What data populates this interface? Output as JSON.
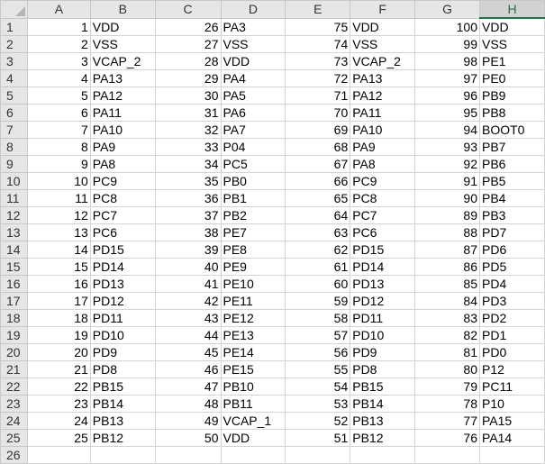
{
  "columns": [
    "A",
    "B",
    "C",
    "D",
    "E",
    "F",
    "G",
    "H"
  ],
  "selected_column": "H",
  "rows": [
    [
      "1",
      "VDD",
      "26",
      "PA3",
      "75",
      "VDD",
      "100",
      "VDD"
    ],
    [
      "2",
      "VSS",
      "27",
      "VSS",
      "74",
      "VSS",
      "99",
      "VSS"
    ],
    [
      "3",
      "VCAP_2",
      "28",
      "VDD",
      "73",
      "VCAP_2",
      "98",
      "PE1"
    ],
    [
      "4",
      "PA13",
      "29",
      "PA4",
      "72",
      "PA13",
      "97",
      "PE0"
    ],
    [
      "5",
      "PA12",
      "30",
      "PA5",
      "71",
      "PA12",
      "96",
      "PB9"
    ],
    [
      "6",
      "PA11",
      "31",
      "PA6",
      "70",
      "PA11",
      "95",
      "PB8"
    ],
    [
      "7",
      "PA10",
      "32",
      "PA7",
      "69",
      "PA10",
      "94",
      "BOOT0"
    ],
    [
      "8",
      "PA9",
      "33",
      "P04",
      "68",
      "PA9",
      "93",
      "PB7"
    ],
    [
      "9",
      "PA8",
      "34",
      "PC5",
      "67",
      "PA8",
      "92",
      "PB6"
    ],
    [
      "10",
      "PC9",
      "35",
      "PB0",
      "66",
      "PC9",
      "91",
      "PB5"
    ],
    [
      "11",
      "PC8",
      "36",
      "PB1",
      "65",
      "PC8",
      "90",
      "PB4"
    ],
    [
      "12",
      "PC7",
      "37",
      "PB2",
      "64",
      "PC7",
      "89",
      "PB3"
    ],
    [
      "13",
      "PC6",
      "38",
      "PE7",
      "63",
      "PC6",
      "88",
      "PD7"
    ],
    [
      "14",
      "PD15",
      "39",
      "PE8",
      "62",
      "PD15",
      "87",
      "PD6"
    ],
    [
      "15",
      "PD14",
      "40",
      "PE9",
      "61",
      "PD14",
      "86",
      "PD5"
    ],
    [
      "16",
      "PD13",
      "41",
      "PE10",
      "60",
      "PD13",
      "85",
      "PD4"
    ],
    [
      "17",
      "PD12",
      "42",
      "PE11",
      "59",
      "PD12",
      "84",
      "PD3"
    ],
    [
      "18",
      "PD11",
      "43",
      "PE12",
      "58",
      "PD11",
      "83",
      "PD2"
    ],
    [
      "19",
      "PD10",
      "44",
      "PE13",
      "57",
      "PD10",
      "82",
      "PD1"
    ],
    [
      "20",
      "PD9",
      "45",
      "PE14",
      "56",
      "PD9",
      "81",
      "PD0"
    ],
    [
      "21",
      "PD8",
      "46",
      "PE15",
      "55",
      "PD8",
      "80",
      "P12"
    ],
    [
      "22",
      "PB15",
      "47",
      "PB10",
      "54",
      "PB15",
      "79",
      "PC11"
    ],
    [
      "23",
      "PB14",
      "48",
      "PB11",
      "53",
      "PB14",
      "78",
      "P10"
    ],
    [
      "24",
      "PB13",
      "49",
      "VCAP_1",
      "52",
      "PB13",
      "77",
      "PA15"
    ],
    [
      "25",
      "PB12",
      "50",
      "VDD",
      "51",
      "PB12",
      "76",
      "PA14"
    ],
    [
      "",
      "",
      "",
      "",
      "",
      "",
      "",
      ""
    ]
  ]
}
